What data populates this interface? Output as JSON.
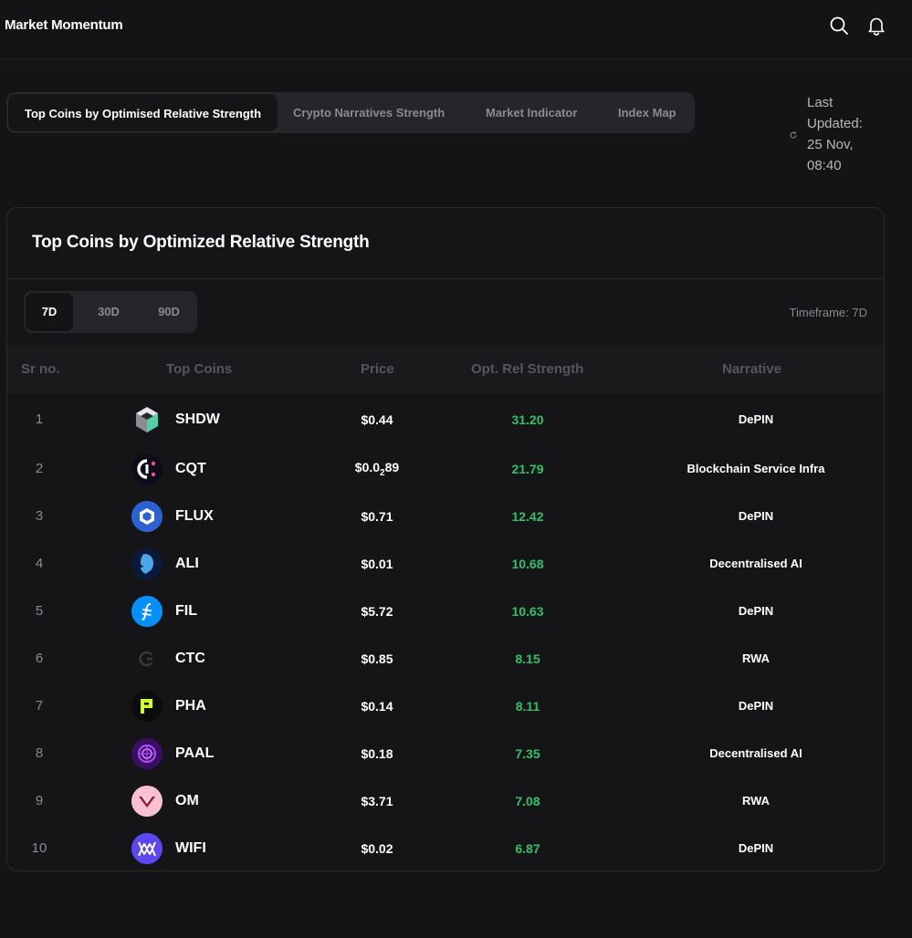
{
  "app": {
    "title": "Market Momentum"
  },
  "header_icons": [
    "search-icon",
    "bell-icon"
  ],
  "tabs": [
    {
      "label": "Top Coins by Optimised Relative Strength",
      "active": true
    },
    {
      "label": "Crypto Narratives Strength",
      "active": false
    },
    {
      "label": "Market Indicator",
      "active": false
    },
    {
      "label": "Index Map",
      "active": false
    }
  ],
  "last_updated": {
    "label": "Last Updated:",
    "date": "25 Nov,",
    "time": "08:40"
  },
  "card": {
    "title": "Top Coins by Optimized Relative Strength",
    "periods": [
      {
        "label": "7D",
        "active": true
      },
      {
        "label": "30D",
        "active": false
      },
      {
        "label": "90D",
        "active": false
      }
    ],
    "timeframe": "Timeframe: 7D",
    "columns": [
      "Sr no.",
      "Top Coins",
      "Price",
      "Opt. Rel Strength",
      "Narrative"
    ],
    "rows": [
      {
        "sr": "1",
        "symbol": "SHDW",
        "price": "$0.44",
        "strength": "31.20",
        "narrative": "DePIN",
        "icon": "shdw-logo-icon"
      },
      {
        "sr": "2",
        "symbol": "CQT",
        "price_prefix": "$0.0",
        "price_sub": "2",
        "price_suffix": "89",
        "strength": "21.79",
        "narrative": "Blockchain Service Infra",
        "icon": "cqt-logo-icon"
      },
      {
        "sr": "3",
        "symbol": "FLUX",
        "price": "$0.71",
        "strength": "12.42",
        "narrative": "DePIN",
        "icon": "flux-logo-icon"
      },
      {
        "sr": "4",
        "symbol": "ALI",
        "price": "$0.01",
        "strength": "10.68",
        "narrative": "Decentralised AI",
        "icon": "ali-logo-icon"
      },
      {
        "sr": "5",
        "symbol": "FIL",
        "price": "$5.72",
        "strength": "10.63",
        "narrative": "DePIN",
        "icon": "fil-logo-icon"
      },
      {
        "sr": "6",
        "symbol": "CTC",
        "price": "$0.85",
        "strength": "8.15",
        "narrative": "RWA",
        "icon": "ctc-logo-icon"
      },
      {
        "sr": "7",
        "symbol": "PHA",
        "price": "$0.14",
        "strength": "8.11",
        "narrative": "DePIN",
        "icon": "pha-logo-icon"
      },
      {
        "sr": "8",
        "symbol": "PAAL",
        "price": "$0.18",
        "strength": "7.35",
        "narrative": "Decentralised AI",
        "icon": "paal-logo-icon"
      },
      {
        "sr": "9",
        "symbol": "OM",
        "price": "$3.71",
        "strength": "7.08",
        "narrative": "RWA",
        "icon": "om-logo-icon"
      },
      {
        "sr": "10",
        "symbol": "WIFI",
        "price": "$0.02",
        "strength": "6.87",
        "narrative": "DePIN",
        "icon": "wifi-logo-icon"
      }
    ]
  },
  "colors": {
    "background": "#141416",
    "card": "#151517",
    "positive": "#2cc26a",
    "muted": "#8a8a90"
  }
}
